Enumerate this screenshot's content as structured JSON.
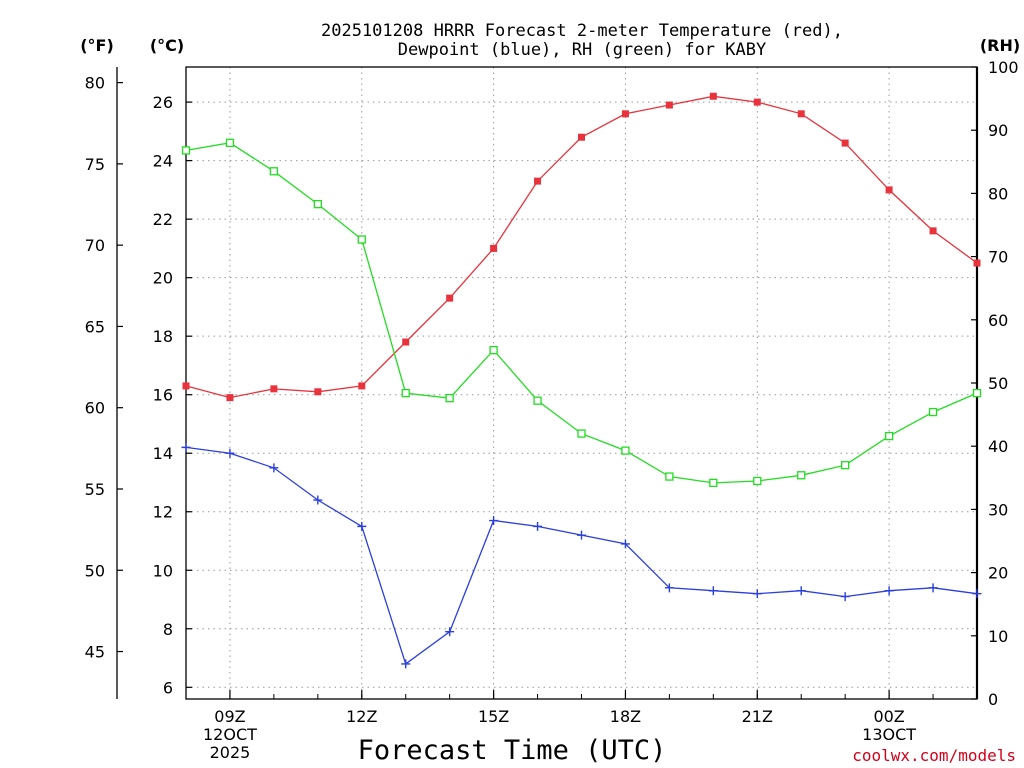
{
  "chart_data": {
    "type": "line",
    "title_lines": [
      "2025101208 HRRR Forecast 2-meter Temperature (red),",
      "Dewpoint (blue), RH (green) for KABY"
    ],
    "xlabel": "Forecast Time (UTC)",
    "credit": "coolwx.com/models",
    "units": {
      "fahrenheit": "(°F)",
      "celsius": "(°C)",
      "rh": "(RH)"
    },
    "x_hours": [
      8,
      9,
      10,
      11,
      12,
      13,
      14,
      15,
      16,
      17,
      18,
      19,
      20,
      21,
      22,
      23,
      24,
      25,
      26
    ],
    "xlim": [
      8,
      26
    ],
    "x_ticks": [
      {
        "hour": 9,
        "labels": [
          "09Z",
          "12OCT",
          "2025"
        ]
      },
      {
        "hour": 12,
        "labels": [
          "12Z"
        ]
      },
      {
        "hour": 15,
        "labels": [
          "15Z"
        ]
      },
      {
        "hour": 18,
        "labels": [
          "18Z"
        ]
      },
      {
        "hour": 21,
        "labels": [
          "21Z"
        ]
      },
      {
        "hour": 24,
        "labels": [
          "00Z",
          "13OCT"
        ]
      }
    ],
    "celsius_axis": {
      "ylim": [
        5.6,
        27.2
      ],
      "ticks": [
        6,
        8,
        10,
        12,
        14,
        16,
        18,
        20,
        22,
        24,
        26
      ]
    },
    "fahrenheit_axis": {
      "ticks": [
        45,
        50,
        55,
        60,
        65,
        70,
        75,
        80
      ]
    },
    "rh_axis": {
      "ylim": [
        0,
        100
      ],
      "ticks": [
        0,
        10,
        20,
        30,
        40,
        50,
        60,
        70,
        80,
        90,
        100
      ]
    },
    "series": [
      {
        "name": "Temperature",
        "unit": "C",
        "axis": "celsius",
        "color": "#e8323c",
        "marker": "filled-square",
        "values": [
          16.3,
          15.9,
          16.2,
          16.1,
          16.3,
          17.8,
          19.3,
          21.0,
          23.3,
          24.8,
          25.6,
          25.9,
          26.2,
          26.0,
          25.6,
          24.6,
          23.0,
          21.6,
          20.5
        ]
      },
      {
        "name": "Dewpoint",
        "unit": "C",
        "axis": "celsius",
        "color": "#2a3fdc",
        "marker": "plus",
        "values": [
          14.2,
          14.0,
          13.5,
          12.4,
          11.5,
          6.8,
          7.9,
          11.7,
          11.5,
          11.2,
          10.9,
          9.4,
          9.3,
          9.2,
          9.3,
          9.1,
          9.3,
          9.4,
          9.2
        ]
      },
      {
        "name": "RH",
        "unit": "%",
        "axis": "rh",
        "color": "#22dd22",
        "marker": "open-square",
        "values": [
          86.8,
          88.0,
          83.5,
          78.3,
          72.7,
          48.4,
          47.6,
          55.2,
          47.2,
          42.0,
          39.3,
          35.2,
          34.2,
          34.5,
          35.4,
          37.0,
          41.6,
          45.4,
          48.4
        ]
      }
    ]
  }
}
